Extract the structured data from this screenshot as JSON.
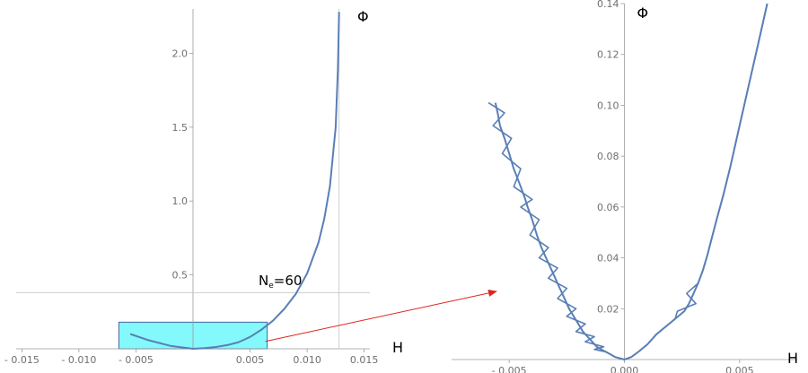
{
  "chart_data": [
    {
      "type": "line",
      "panel": "full",
      "xlabel": "H",
      "ylabel": "Φ",
      "xlim": [
        -0.0155,
        0.0155
      ],
      "ylim": [
        0,
        2.3
      ],
      "xticks": [
        -0.015,
        -0.01,
        -0.005,
        0.005,
        0.01,
        0.015
      ],
      "xtick_labels": [
        "- 0.015",
        "- 0.010",
        "- 0.005",
        "0.005",
        "0.010",
        "0.015"
      ],
      "yticks": [
        0.5,
        1.0,
        1.5,
        2.0
      ],
      "ytick_labels": [
        "0.5",
        "1.0",
        "1.5",
        "2.0"
      ],
      "reference_lines": {
        "horizontal_y": 0.38,
        "vertical_x": 0.0128
      },
      "annotation": {
        "text_base": "N",
        "text_sub": "e",
        "text_rest": "=60"
      },
      "zoom_box": {
        "x": [
          -0.0065,
          0.0065
        ],
        "y": [
          0,
          0.18
        ],
        "color": "#7ef9fb"
      },
      "series": [
        {
          "x": [
            -0.0055,
            -0.004,
            -0.003,
            -0.002,
            -0.001,
            0.0,
            0.001,
            0.002,
            0.003,
            0.004,
            0.005,
            0.006,
            0.007,
            0.008,
            0.009,
            0.01,
            0.011,
            0.0115,
            0.012,
            0.0125,
            0.0127,
            0.0128
          ],
          "y": [
            0.1,
            0.06,
            0.04,
            0.02,
            0.01,
            0.0,
            0.005,
            0.012,
            0.025,
            0.045,
            0.08,
            0.13,
            0.19,
            0.27,
            0.37,
            0.51,
            0.72,
            0.88,
            1.1,
            1.5,
            1.9,
            2.28
          ]
        }
      ]
    },
    {
      "type": "line",
      "panel": "zoom",
      "xlabel": "H",
      "ylabel": "Φ",
      "xlim": [
        -0.0075,
        0.0075
      ],
      "ylim": [
        0,
        0.14
      ],
      "xticks": [
        -0.005,
        0.0,
        0.005
      ],
      "xtick_labels": [
        "- 0.005",
        "0.000",
        "0.005"
      ],
      "yticks": [
        0.02,
        0.04,
        0.06,
        0.08,
        0.1,
        0.12,
        0.14
      ],
      "ytick_labels": [
        "0.02",
        "0.04",
        "0.06",
        "0.08",
        "0.10",
        "0.12",
        "0.14"
      ],
      "series": [
        {
          "x": [
            -0.0056,
            -0.0055,
            -0.0054,
            -0.0052,
            -0.005,
            -0.0048,
            -0.0045,
            -0.0043,
            -0.0042,
            -0.004,
            -0.0038,
            -0.0036,
            -0.0034,
            -0.0032,
            -0.003,
            -0.0028,
            -0.0026,
            -0.0024,
            -0.0022,
            -0.002,
            -0.0018,
            -0.0016,
            -0.0014,
            -0.0012,
            -0.001,
            -0.0008,
            -0.0006,
            -0.0004,
            -0.0002,
            0.0,
            0.0003,
            0.0006,
            0.001,
            0.0014,
            0.0018,
            0.0022,
            0.0026,
            0.0028,
            0.003,
            0.0032,
            0.0034,
            0.0036,
            0.0038,
            0.004,
            0.0043,
            0.0046,
            0.005,
            0.0054,
            0.0058,
            0.0062
          ],
          "y": [
            0.101,
            0.097,
            0.092,
            0.087,
            0.081,
            0.075,
            0.068,
            0.063,
            0.06,
            0.055,
            0.049,
            0.044,
            0.04,
            0.036,
            0.032,
            0.028,
            0.024,
            0.02,
            0.017,
            0.014,
            0.011,
            0.009,
            0.007,
            0.005,
            0.004,
            0.003,
            0.002,
            0.001,
            0.0005,
            0.0,
            0.001,
            0.003,
            0.006,
            0.01,
            0.013,
            0.016,
            0.019,
            0.022,
            0.026,
            0.03,
            0.035,
            0.041,
            0.048,
            0.055,
            0.065,
            0.076,
            0.092,
            0.108,
            0.124,
            0.14
          ]
        }
      ]
    }
  ]
}
